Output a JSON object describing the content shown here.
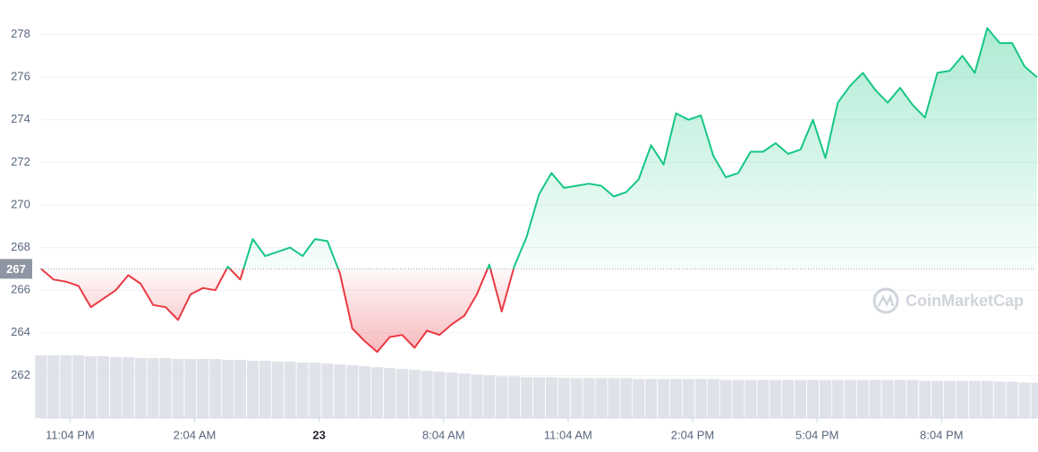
{
  "chart_data": {
    "type": "line",
    "x": [
      -0.7,
      -0.4,
      -0.1,
      0.2,
      0.5,
      0.8,
      1.1,
      1.4,
      1.7,
      2.0,
      2.3,
      2.6,
      2.9,
      3.2,
      3.5,
      3.8,
      4.1,
      4.4,
      4.7,
      5.0,
      5.3,
      5.6,
      5.9,
      6.2,
      6.5,
      6.8,
      7.1,
      7.4,
      7.7,
      8.0,
      8.3,
      8.6,
      8.9,
      9.2,
      9.5,
      9.8,
      10.1,
      10.4,
      10.7,
      11.0,
      11.3,
      11.6,
      11.9,
      12.2,
      12.5,
      12.8,
      13.1,
      13.4,
      13.7,
      14.0,
      14.3,
      14.6,
      14.9,
      15.2,
      15.5,
      15.8,
      16.1,
      16.4,
      16.7,
      17.0,
      17.3,
      17.6,
      17.9,
      18.2,
      18.5,
      18.8,
      19.1,
      19.4,
      19.7,
      20.0,
      20.3,
      20.6,
      20.9,
      21.2,
      21.5,
      21.8,
      22.1,
      22.4,
      22.7,
      23.0,
      23.3
    ],
    "series": [
      {
        "name": "Price",
        "color_up": "#16c784",
        "color_down": "#ea3943",
        "values": [
          267.0,
          266.5,
          266.4,
          266.2,
          265.2,
          265.6,
          266.0,
          266.7,
          266.3,
          265.3,
          265.2,
          264.6,
          265.8,
          266.1,
          266.0,
          267.1,
          266.5,
          268.4,
          267.6,
          267.8,
          268.0,
          267.6,
          268.4,
          268.3,
          266.8,
          264.2,
          263.6,
          263.1,
          263.8,
          263.9,
          263.3,
          264.1,
          263.9,
          264.4,
          264.8,
          265.8,
          267.2,
          265.0,
          267.1,
          268.5,
          270.5,
          271.5,
          270.8,
          270.9,
          271.0,
          270.9,
          270.4,
          270.6,
          271.2,
          272.8,
          271.9,
          274.3,
          274.0,
          274.2,
          272.3,
          271.3,
          271.5,
          272.5,
          272.5,
          272.9,
          272.4,
          272.6,
          274.0,
          272.2,
          274.8,
          275.6,
          276.2,
          275.4,
          274.8,
          275.5,
          274.7,
          274.1,
          276.2,
          276.3,
          277.0,
          276.2,
          278.3,
          277.6,
          277.6,
          276.5,
          276.0
        ]
      },
      {
        "name": "Volume",
        "color": "#dfe2e8",
        "values": [
          69,
          69,
          69,
          69,
          68,
          68,
          67,
          67,
          66,
          66,
          66,
          65,
          65,
          65,
          65,
          64,
          64,
          63,
          63,
          62,
          62,
          61,
          61,
          60,
          59,
          58,
          57,
          56,
          55,
          54,
          53,
          52,
          51,
          50,
          49,
          48,
          47,
          46,
          46,
          45,
          45,
          45,
          44,
          44,
          44,
          44,
          44,
          44,
          43,
          43,
          43,
          43,
          43,
          43,
          43,
          42,
          42,
          42,
          42,
          42,
          42,
          42,
          42,
          42,
          42,
          42,
          42,
          42,
          42,
          42,
          42,
          41,
          41,
          41,
          41,
          41,
          41,
          40,
          40,
          39,
          39
        ]
      }
    ],
    "baseline": 267,
    "xlim": [
      -0.72,
      23.28
    ],
    "xticks": [
      {
        "value": 0,
        "label": "11:04 PM"
      },
      {
        "value": 3,
        "label": "2:04 AM"
      },
      {
        "value": 6,
        "label": "23"
      },
      {
        "value": 9,
        "label": "8:04 AM"
      },
      {
        "value": 12,
        "label": "11:04 AM"
      },
      {
        "value": 15,
        "label": "2:04 PM"
      },
      {
        "value": 18,
        "label": "5:04 PM"
      },
      {
        "value": 21,
        "label": "8:04 PM"
      }
    ],
    "ylim": [
      260,
      279.2
    ],
    "yticks": [
      262,
      264,
      266,
      268,
      270,
      272,
      274,
      276,
      278
    ],
    "grid": true,
    "watermark": "CoinMarketCap"
  }
}
